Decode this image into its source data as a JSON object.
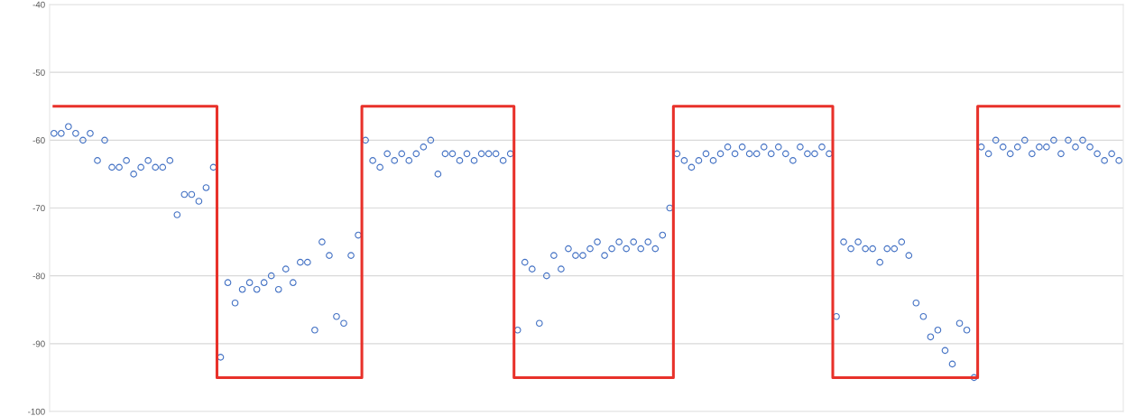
{
  "chart_data": {
    "type": "scatter",
    "categories": [
      null,
      null,
      null,
      null,
      null,
      null,
      null,
      null,
      null,
      null,
      null,
      null,
      null,
      null,
      null,
      null,
      null,
      null,
      null,
      null,
      null,
      null,
      null,
      null,
      null,
      null,
      null,
      null,
      null,
      null,
      null,
      null,
      null,
      null,
      null,
      null,
      null,
      null,
      null,
      null,
      null,
      null,
      null,
      null,
      null,
      null,
      null,
      null,
      null,
      null,
      null,
      null,
      null,
      null,
      null,
      null,
      null,
      null,
      null,
      null,
      null,
      null,
      null,
      null,
      null,
      null,
      null,
      null,
      null,
      null,
      null,
      null,
      null,
      null,
      null,
      null,
      null,
      null,
      null,
      null,
      null,
      null,
      null,
      null,
      null,
      null,
      null,
      null,
      null,
      null,
      null,
      null,
      null,
      null,
      null,
      null,
      null,
      null,
      null,
      null,
      null,
      null,
      null,
      null,
      null,
      null,
      null,
      null,
      null,
      null,
      null,
      null,
      null,
      null,
      null,
      null,
      null,
      null,
      null,
      null,
      null,
      null,
      null,
      null,
      null,
      null,
      null,
      null,
      null,
      null,
      null,
      null,
      null,
      null,
      null,
      null,
      null,
      null,
      null,
      null,
      null,
      null,
      null,
      null,
      null,
      null,
      null,
      null
    ],
    "series": [
      {
        "color": "#4472c4",
        "marker": "circle",
        "values": [
          -59,
          -59,
          -58,
          -59,
          -60,
          -59,
          -63,
          -60,
          -64,
          -64,
          -63,
          -65,
          -64,
          -63,
          -64,
          -64,
          -63,
          -71,
          -68,
          -68,
          -69,
          -67,
          -64,
          -92,
          -81,
          -84,
          -82,
          -81,
          -82,
          -81,
          -80,
          -82,
          -79,
          -81,
          -78,
          -78,
          -88,
          -75,
          -77,
          -86,
          -87,
          -77,
          -74,
          -60,
          -63,
          -64,
          -62,
          -63,
          -62,
          -63,
          -62,
          -61,
          -60,
          -65,
          -62,
          -62,
          -63,
          -62,
          -63,
          -62,
          -62,
          -62,
          -63,
          -62,
          -88,
          -78,
          -79,
          -87,
          -80,
          -77,
          -79,
          -76,
          -77,
          -77,
          -76,
          -75,
          -77,
          -76,
          -75,
          -76,
          -75,
          -76,
          -75,
          -76,
          -74,
          -70,
          -62,
          -63,
          -64,
          -63,
          -62,
          -63,
          -62,
          -61,
          -62,
          -61,
          -62,
          -62,
          -61,
          -62,
          -61,
          -62,
          -63,
          -61,
          -62,
          -62,
          -61,
          -62,
          -86,
          -75,
          -76,
          -75,
          -76,
          -76,
          -78,
          -76,
          -76,
          -75,
          -77,
          -84,
          -86,
          -89,
          -88,
          -91,
          -93,
          -87,
          -88,
          -95,
          -61,
          -62,
          -60,
          -61,
          -62,
          -61,
          -60,
          -62,
          -61,
          -61,
          -60,
          -62,
          -60,
          -61,
          -60,
          -61,
          -62,
          -63,
          -62,
          -63
        ]
      },
      {
        "type": "step",
        "color": "#e8312a",
        "marker": "none",
        "line_style": "solid",
        "values": [
          -55,
          -55,
          -55,
          -55,
          -55,
          -55,
          -55,
          -55,
          -55,
          -55,
          -55,
          -55,
          -55,
          -55,
          -55,
          -55,
          -55,
          -55,
          -55,
          -55,
          -55,
          -55,
          -55,
          -95,
          -95,
          -95,
          -95,
          -95,
          -95,
          -95,
          -95,
          -95,
          -95,
          -95,
          -95,
          -95,
          -95,
          -95,
          -95,
          -95,
          -95,
          -95,
          -95,
          -55,
          -55,
          -55,
          -55,
          -55,
          -55,
          -55,
          -55,
          -55,
          -55,
          -55,
          -55,
          -55,
          -55,
          -55,
          -55,
          -55,
          -55,
          -55,
          -55,
          -55,
          -95,
          -95,
          -95,
          -95,
          -95,
          -95,
          -95,
          -95,
          -95,
          -95,
          -95,
          -95,
          -95,
          -95,
          -95,
          -95,
          -95,
          -95,
          -95,
          -95,
          -95,
          -95,
          -55,
          -55,
          -55,
          -55,
          -55,
          -55,
          -55,
          -55,
          -55,
          -55,
          -55,
          -55,
          -55,
          -55,
          -55,
          -55,
          -55,
          -55,
          -55,
          -55,
          -55,
          -55,
          -95,
          -95,
          -95,
          -95,
          -95,
          -95,
          -95,
          -95,
          -95,
          -95,
          -95,
          -95,
          -95,
          -95,
          -95,
          -95,
          -95,
          -95,
          -95,
          -95,
          -55,
          -55,
          -55,
          -55,
          -55,
          -55,
          -55,
          -55,
          -55,
          -55,
          -55,
          -55,
          -55,
          -55,
          -55,
          -55,
          -55,
          -55,
          -55,
          -55
        ]
      }
    ],
    "ylim": [
      -100,
      -40
    ],
    "yticks": [
      -100,
      -90,
      -80,
      -70,
      -60,
      -50,
      -40
    ],
    "grid": "y"
  }
}
